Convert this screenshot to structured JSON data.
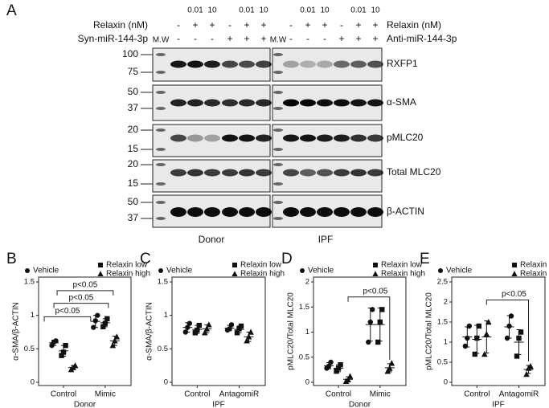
{
  "blot": {
    "label": "A",
    "mw_label": "M.W",
    "left": {
      "group": "Donor",
      "treatments": [
        {
          "name": "Relaxin (nM)",
          "signs": [
            "-",
            "+",
            "+",
            "-",
            "+",
            "+"
          ],
          "doses": [
            null,
            "0.01",
            "10",
            null,
            "0.01",
            "10"
          ]
        },
        {
          "name": "Syn-miR-144-3p",
          "signs": [
            "-",
            "-",
            "-",
            "+",
            "+",
            "+"
          ]
        }
      ]
    },
    "right": {
      "group": "IPF",
      "treatments": [
        {
          "name": "Relaxin (nM)",
          "signs": [
            "-",
            "+",
            "+",
            "-",
            "+",
            "+"
          ],
          "doses": [
            null,
            "0.01",
            "10",
            null,
            "0.01",
            "10"
          ]
        },
        {
          "name": "Anti-miR-144-3p",
          "signs": [
            "-",
            "-",
            "-",
            "+",
            "+",
            "+"
          ]
        }
      ]
    },
    "rows": [
      {
        "protein": "RXFP1",
        "markers": [
          100,
          75
        ]
      },
      {
        "protein": "α-SMA",
        "markers": [
          50,
          37
        ]
      },
      {
        "protein": "pMLC20",
        "markers": [
          20,
          15
        ]
      },
      {
        "protein": "Total MLC20",
        "markers": [
          20,
          15
        ]
      },
      {
        "protein": "β-ACTIN",
        "markers": [
          50,
          37
        ]
      }
    ]
  },
  "chart_data": [
    {
      "type": "dotplot",
      "label": "B",
      "ylabel": "α-SMA/β-ACTIN",
      "xlabel": "Donor",
      "categories": [
        "Control",
        "Mimic"
      ],
      "ylim": [
        0,
        1.5
      ],
      "yticks": [
        0,
        0.5,
        1,
        1.5
      ],
      "series": [
        {
          "name": "Vehicle",
          "marker": "circle",
          "color": "#111",
          "points": [
            [
              0.55,
              0.6,
              0.62
            ],
            [
              0.82,
              0.92,
              1.0
            ]
          ],
          "values": [
            0.59,
            0.91
          ],
          "errors": [
            0.04,
            0.09
          ]
        },
        {
          "name": "Relaxin low",
          "marker": "square",
          "color": "#111",
          "points": [
            [
              0.4,
              0.45,
              0.55
            ],
            [
              0.83,
              0.88,
              0.95
            ]
          ],
          "values": [
            0.47,
            0.89
          ],
          "errors": [
            0.08,
            0.06
          ]
        },
        {
          "name": "Relaxin high",
          "marker": "triangle",
          "color": "#111",
          "points": [
            [
              0.19,
              0.22,
              0.25
            ],
            [
              0.55,
              0.62,
              0.68
            ]
          ],
          "values": [
            0.22,
            0.62
          ],
          "errors": [
            0.03,
            0.07
          ]
        }
      ],
      "annotations": [
        "p<0.05",
        "p<0.05",
        "p<0.05"
      ]
    },
    {
      "type": "dotplot",
      "label": "C",
      "ylabel": "α-SMA/β-ACTIN",
      "xlabel": "IPF",
      "categories": [
        "Control",
        "AntagomiR"
      ],
      "ylim": [
        0,
        1.5
      ],
      "yticks": [
        0,
        0.5,
        1,
        1.5
      ],
      "series": [
        {
          "name": "Vehicle",
          "marker": "circle",
          "color": "#111",
          "points": [
            [
              0.75,
              0.82,
              0.88
            ],
            [
              0.78,
              0.8,
              0.86
            ]
          ],
          "values": [
            0.82,
            0.81
          ],
          "errors": [
            0.07,
            0.04
          ]
        },
        {
          "name": "Relaxin low",
          "marker": "square",
          "color": "#111",
          "points": [
            [
              0.74,
              0.78,
              0.85
            ],
            [
              0.74,
              0.8,
              0.84
            ]
          ],
          "values": [
            0.79,
            0.79
          ],
          "errors": [
            0.06,
            0.05
          ]
        },
        {
          "name": "Relaxin high",
          "marker": "triangle",
          "color": "#111",
          "points": [
            [
              0.74,
              0.8,
              0.86
            ],
            [
              0.62,
              0.68,
              0.75
            ]
          ],
          "values": [
            0.8,
            0.68
          ],
          "errors": [
            0.06,
            0.07
          ]
        }
      ],
      "annotations": []
    },
    {
      "type": "dotplot",
      "label": "D",
      "ylabel": "pMLC20/Total MLC20",
      "xlabel": "Donor",
      "categories": [
        "Control",
        "Mimic"
      ],
      "ylim": [
        0,
        2
      ],
      "yticks": [
        0,
        0.5,
        1,
        1.5,
        2
      ],
      "series": [
        {
          "name": "Vehicle",
          "marker": "circle",
          "color": "#111",
          "points": [
            [
              0.28,
              0.32,
              0.4
            ],
            [
              0.8,
              1.2,
              1.45
            ]
          ],
          "values": [
            0.33,
            1.15
          ],
          "errors": [
            0.06,
            0.33
          ]
        },
        {
          "name": "Relaxin low",
          "marker": "square",
          "color": "#111",
          "points": [
            [
              0.22,
              0.28,
              0.35
            ],
            [
              0.8,
              1.2,
              1.45
            ]
          ],
          "values": [
            0.28,
            1.15
          ],
          "errors": [
            0.07,
            0.33
          ]
        },
        {
          "name": "Relaxin high",
          "marker": "triangle",
          "color": "#111",
          "points": [
            [
              0.02,
              0.05,
              0.12
            ],
            [
              0.22,
              0.28,
              0.38
            ]
          ],
          "values": [
            0.06,
            0.29
          ],
          "errors": [
            0.05,
            0.08
          ]
        }
      ],
      "annotations": [
        "p<0.05"
      ]
    },
    {
      "type": "dotplot",
      "label": "E",
      "ylabel": "pMLC20/Total MLC20",
      "xlabel": "IPF",
      "categories": [
        "Control",
        "AntagomiR"
      ],
      "ylim": [
        0,
        2.5
      ],
      "yticks": [
        0,
        0.5,
        1,
        1.5,
        2,
        2.5
      ],
      "series": [
        {
          "name": "Vehicle",
          "marker": "circle",
          "color": "#111",
          "points": [
            [
              0.9,
              1.1,
              1.4
            ],
            [
              1.1,
              1.4,
              1.65
            ]
          ],
          "values": [
            1.13,
            1.38
          ],
          "errors": [
            0.25,
            0.28
          ]
        },
        {
          "name": "Relaxin low",
          "marker": "square",
          "color": "#111",
          "points": [
            [
              0.7,
              1.1,
              1.4
            ],
            [
              0.65,
              1.1,
              1.25
            ]
          ],
          "values": [
            1.07,
            1.0
          ],
          "errors": [
            0.35,
            0.31
          ]
        },
        {
          "name": "Relaxin high",
          "marker": "triangle",
          "color": "#111",
          "points": [
            [
              0.7,
              1.2,
              1.5
            ],
            [
              0.2,
              0.35,
              0.4
            ]
          ],
          "values": [
            1.13,
            0.32
          ],
          "errors": [
            0.4,
            0.1
          ]
        }
      ],
      "annotations": [
        "p<0.05"
      ]
    }
  ]
}
